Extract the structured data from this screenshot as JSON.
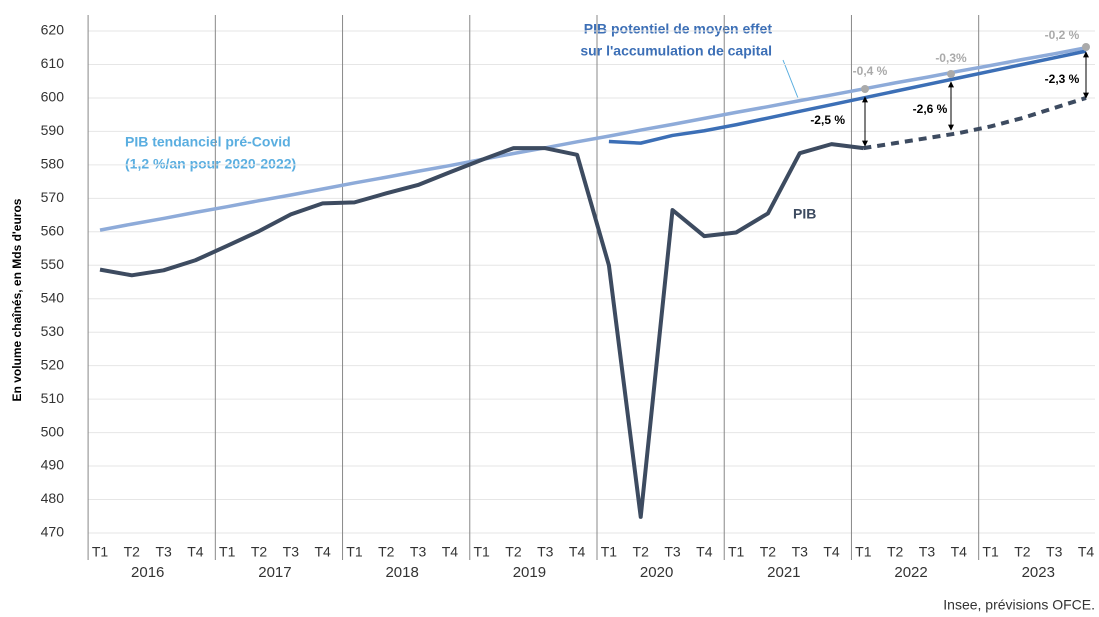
{
  "chart_data": {
    "type": "line",
    "y_label": "En volume chaînés, en Mds d'euros",
    "categories": [
      "T1",
      "T2",
      "T3",
      "T4",
      "T1",
      "T2",
      "T3",
      "T4",
      "T1",
      "T2",
      "T3",
      "T4",
      "T1",
      "T2",
      "T3",
      "T4",
      "T1",
      "T2",
      "T3",
      "T4",
      "T1",
      "T2",
      "T3",
      "T4",
      "T1",
      "T2",
      "T3",
      "T4",
      "T1",
      "T2",
      "T3",
      "T4"
    ],
    "years": [
      "2016",
      "2017",
      "2018",
      "2019",
      "2020",
      "2021",
      "2022",
      "2023"
    ],
    "series": [
      {
        "name": "PIB  tendanciel  pré-Covid",
        "name_line2": "(1,2 %/an  pour 2020-2022)",
        "color": "#8eabd9",
        "values": [
          560.5,
          562.3,
          564.0,
          565.8,
          567.5,
          569.3,
          571.0,
          572.8,
          574.6,
          576.3,
          578.1,
          579.8,
          581.6,
          583.4,
          585.1,
          586.9,
          588.6,
          590.4,
          592.1,
          593.9,
          595.7,
          597.4,
          599.2,
          600.9,
          602.7,
          604.5,
          606.2,
          608.0,
          609.7,
          611.5,
          613.2,
          615.0
        ]
      },
      {
        "name": "PIB potentiel de moyen effet",
        "name_line2": "sur l'accumulation de capital",
        "color": "#3c6fb6",
        "values": [
          null,
          null,
          null,
          null,
          null,
          null,
          null,
          null,
          null,
          null,
          null,
          null,
          null,
          null,
          null,
          null,
          587,
          586.5,
          588.8,
          590.2,
          592,
          594,
          596,
          598,
          600,
          602,
          604,
          606,
          608,
          610,
          612,
          614
        ]
      },
      {
        "name": "PIB",
        "color": "#3d4b60",
        "dashed_from": 24,
        "values": [
          548.7,
          547,
          548.5,
          551.5,
          555.8,
          560.2,
          565.2,
          568.5,
          568.8,
          571.5,
          574,
          577.8,
          581.5,
          585,
          585,
          583,
          550,
          474.8,
          566.5,
          558.7,
          559.8,
          565.5,
          583.5,
          586.2,
          585,
          586.5,
          588,
          589.5,
          591.5,
          594,
          597,
          600
        ]
      }
    ],
    "annotations": [
      "-2,5 %",
      "-2,6 %",
      "-2,3 %",
      "-0,4 %",
      "-0,3%",
      "-0,2 %"
    ],
    "source": "Insee, prévisions OFCE.",
    "ylim": [
      467,
      623
    ],
    "yticks": [
      470,
      480,
      490,
      500,
      510,
      520,
      530,
      540,
      550,
      560,
      570,
      580,
      590,
      600,
      610,
      620
    ],
    "grid": true
  }
}
